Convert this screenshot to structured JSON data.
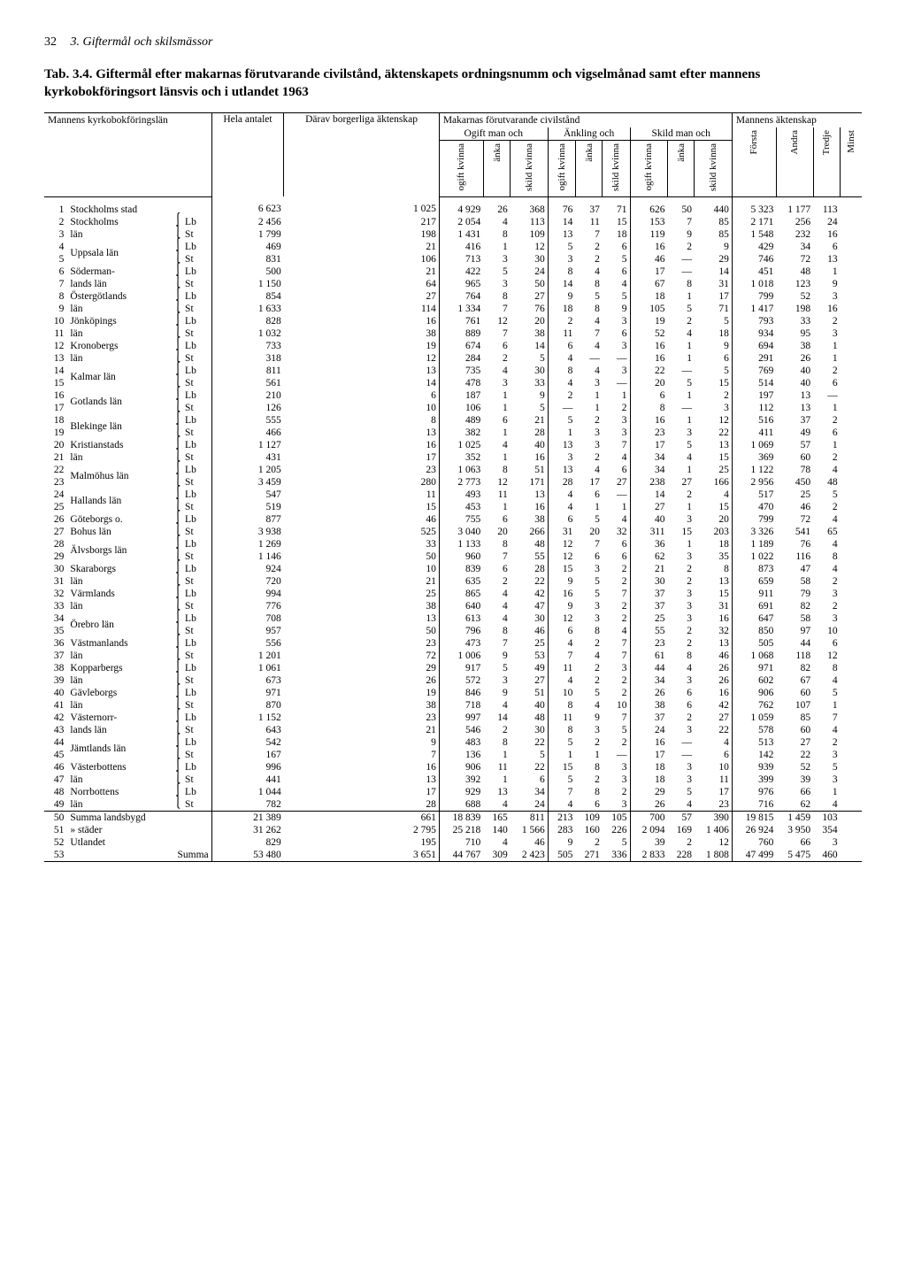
{
  "page": {
    "num": "32",
    "section": "3. Giftermål och skilsmässor"
  },
  "title_lead": "Tab. 3.4.",
  "title_rest": " Giftermål efter makarnas förutvarande civilstånd, äktenskapets ordningsnumm och vigselmånad samt efter mannens kyrkobokföringsort länsvis och i utlandet 1963",
  "headers": {
    "left": "Mannens kyrkobok­föringslän",
    "hela": "Hela an­talet",
    "darav": "Därav bor­ger­liga äkten­skap",
    "makarnas": "Makarnas förutvarande civilstånd",
    "mannens": "Mannens äktenskap",
    "ogift_man": "Ogift man och",
    "ankling": "Änkling och",
    "skild_man": "Skild man och",
    "sub": {
      "ogift_kv": "ogift kvinna",
      "anka": "änka",
      "skild_kv": "skild kvinna",
      "forsta": "Första",
      "andra": "Andra",
      "tredje": "Tredje",
      "minst": "Minst"
    }
  },
  "regions": [
    {
      "rows": [
        [
          "1",
          "Stockholms stad",
          "",
          "6 623",
          "1 025",
          "4 929",
          "26",
          "368",
          "76",
          "37",
          "71",
          "626",
          "50",
          "440",
          "5 323",
          "1 177",
          "113",
          ""
        ]
      ]
    },
    {
      "rows": [
        [
          "2",
          "Stockholms",
          "Lb",
          "2 456",
          "217",
          "2 054",
          "4",
          "113",
          "14",
          "11",
          "15",
          "153",
          "7",
          "85",
          "2 171",
          "256",
          "24",
          ""
        ],
        [
          "3",
          "län",
          "St",
          "1 799",
          "198",
          "1 431",
          "8",
          "109",
          "13",
          "7",
          "18",
          "119",
          "9",
          "85",
          "1 548",
          "232",
          "16",
          ""
        ]
      ]
    },
    {
      "rows": [
        [
          "4",
          "Uppsala län",
          "Lb",
          "469",
          "21",
          "416",
          "1",
          "12",
          "5",
          "2",
          "6",
          "16",
          "2",
          "9",
          "429",
          "34",
          "6",
          ""
        ],
        [
          "5",
          "",
          "St",
          "831",
          "106",
          "713",
          "3",
          "30",
          "3",
          "2",
          "5",
          "46",
          "—",
          "29",
          "746",
          "72",
          "13",
          ""
        ]
      ]
    },
    {
      "rows": [
        [
          "6",
          "Söderman-",
          "Lb",
          "500",
          "21",
          "422",
          "5",
          "24",
          "8",
          "4",
          "6",
          "17",
          "—",
          "14",
          "451",
          "48",
          "1",
          ""
        ],
        [
          "7",
          "lands län",
          "St",
          "1 150",
          "64",
          "965",
          "3",
          "50",
          "14",
          "8",
          "4",
          "67",
          "8",
          "31",
          "1 018",
          "123",
          "9",
          ""
        ]
      ]
    },
    {
      "rows": [
        [
          "8",
          "Östergötlands",
          "Lb",
          "854",
          "27",
          "764",
          "8",
          "27",
          "9",
          "5",
          "5",
          "18",
          "1",
          "17",
          "799",
          "52",
          "3",
          ""
        ],
        [
          "9",
          "län",
          "St",
          "1 633",
          "114",
          "1 334",
          "7",
          "76",
          "18",
          "8",
          "9",
          "105",
          "5",
          "71",
          "1 417",
          "198",
          "16",
          ""
        ]
      ]
    },
    {
      "rows": [
        [
          "10",
          "Jönköpings",
          "Lb",
          "828",
          "16",
          "761",
          "12",
          "20",
          "2",
          "4",
          "3",
          "19",
          "2",
          "5",
          "793",
          "33",
          "2",
          ""
        ],
        [
          "11",
          "län",
          "St",
          "1 032",
          "38",
          "889",
          "7",
          "38",
          "11",
          "7",
          "6",
          "52",
          "4",
          "18",
          "934",
          "95",
          "3",
          ""
        ]
      ]
    },
    {
      "rows": [
        [
          "12",
          "Kronobergs",
          "Lb",
          "733",
          "19",
          "674",
          "6",
          "14",
          "6",
          "4",
          "3",
          "16",
          "1",
          "9",
          "694",
          "38",
          "1",
          ""
        ],
        [
          "13",
          "län",
          "St",
          "318",
          "12",
          "284",
          "2",
          "5",
          "4",
          "—",
          "—",
          "16",
          "1",
          "6",
          "291",
          "26",
          "1",
          ""
        ]
      ]
    },
    {
      "rows": [
        [
          "14",
          "Kalmar län",
          "Lb",
          "811",
          "13",
          "735",
          "4",
          "30",
          "8",
          "4",
          "3",
          "22",
          "—",
          "5",
          "769",
          "40",
          "2",
          ""
        ],
        [
          "15",
          "",
          "St",
          "561",
          "14",
          "478",
          "3",
          "33",
          "4",
          "3",
          "—",
          "20",
          "5",
          "15",
          "514",
          "40",
          "6",
          ""
        ]
      ]
    },
    {
      "rows": [
        [
          "16",
          "Gotlands län",
          "Lb",
          "210",
          "6",
          "187",
          "1",
          "9",
          "2",
          "1",
          "1",
          "6",
          "1",
          "2",
          "197",
          "13",
          "—",
          ""
        ],
        [
          "17",
          "",
          "St",
          "126",
          "10",
          "106",
          "1",
          "5",
          "—",
          "1",
          "2",
          "8",
          "—",
          "3",
          "112",
          "13",
          "1",
          ""
        ]
      ]
    },
    {
      "rows": [
        [
          "18",
          "Blekinge län",
          "Lb",
          "555",
          "8",
          "489",
          "6",
          "21",
          "5",
          "2",
          "3",
          "16",
          "1",
          "12",
          "516",
          "37",
          "2",
          ""
        ],
        [
          "19",
          "",
          "St",
          "466",
          "13",
          "382",
          "1",
          "28",
          "1",
          "3",
          "3",
          "23",
          "3",
          "22",
          "411",
          "49",
          "6",
          ""
        ]
      ]
    },
    {
      "rows": [
        [
          "20",
          "Kristianstads",
          "Lb",
          "1 127",
          "16",
          "1 025",
          "4",
          "40",
          "13",
          "3",
          "7",
          "17",
          "5",
          "13",
          "1 069",
          "57",
          "1",
          ""
        ],
        [
          "21",
          "län",
          "St",
          "431",
          "17",
          "352",
          "1",
          "16",
          "3",
          "2",
          "4",
          "34",
          "4",
          "15",
          "369",
          "60",
          "2",
          ""
        ]
      ]
    },
    {
      "rows": [
        [
          "22",
          "Malmöhus län",
          "Lb",
          "1 205",
          "23",
          "1 063",
          "8",
          "51",
          "13",
          "4",
          "6",
          "34",
          "1",
          "25",
          "1 122",
          "78",
          "4",
          ""
        ],
        [
          "23",
          "",
          "St",
          "3 459",
          "280",
          "2 773",
          "12",
          "171",
          "28",
          "17",
          "27",
          "238",
          "27",
          "166",
          "2 956",
          "450",
          "48",
          ""
        ]
      ]
    },
    {
      "rows": [
        [
          "24",
          "Hallands län",
          "Lb",
          "547",
          "11",
          "493",
          "11",
          "13",
          "4",
          "6",
          "—",
          "14",
          "2",
          "4",
          "517",
          "25",
          "5",
          ""
        ],
        [
          "25",
          "",
          "St",
          "519",
          "15",
          "453",
          "1",
          "16",
          "4",
          "1",
          "1",
          "27",
          "1",
          "15",
          "470",
          "46",
          "2",
          ""
        ]
      ]
    },
    {
      "rows": [
        [
          "26",
          "Göteborgs o.",
          "Lb",
          "877",
          "46",
          "755",
          "6",
          "38",
          "6",
          "5",
          "4",
          "40",
          "3",
          "20",
          "799",
          "72",
          "4",
          ""
        ],
        [
          "27",
          "Bohus län",
          "St",
          "3 938",
          "525",
          "3 040",
          "20",
          "266",
          "31",
          "20",
          "32",
          "311",
          "15",
          "203",
          "3 326",
          "541",
          "65",
          ""
        ]
      ]
    },
    {
      "rows": [
        [
          "28",
          "Älvsborgs län",
          "Lb",
          "1 269",
          "33",
          "1 133",
          "8",
          "48",
          "12",
          "7",
          "6",
          "36",
          "1",
          "18",
          "1 189",
          "76",
          "4",
          ""
        ],
        [
          "29",
          "",
          "St",
          "1 146",
          "50",
          "960",
          "7",
          "55",
          "12",
          "6",
          "6",
          "62",
          "3",
          "35",
          "1 022",
          "116",
          "8",
          ""
        ]
      ]
    },
    {
      "rows": [
        [
          "30",
          "Skaraborgs",
          "Lb",
          "924",
          "10",
          "839",
          "6",
          "28",
          "15",
          "3",
          "2",
          "21",
          "2",
          "8",
          "873",
          "47",
          "4",
          ""
        ],
        [
          "31",
          "län",
          "St",
          "720",
          "21",
          "635",
          "2",
          "22",
          "9",
          "5",
          "2",
          "30",
          "2",
          "13",
          "659",
          "58",
          "2",
          ""
        ]
      ]
    },
    {
      "rows": [
        [
          "32",
          "Värmlands",
          "Lb",
          "994",
          "25",
          "865",
          "4",
          "42",
          "16",
          "5",
          "7",
          "37",
          "3",
          "15",
          "911",
          "79",
          "3",
          ""
        ],
        [
          "33",
          "län",
          "St",
          "776",
          "38",
          "640",
          "4",
          "47",
          "9",
          "3",
          "2",
          "37",
          "3",
          "31",
          "691",
          "82",
          "2",
          ""
        ]
      ]
    },
    {
      "rows": [
        [
          "34",
          "Örebro län",
          "Lb",
          "708",
          "13",
          "613",
          "4",
          "30",
          "12",
          "3",
          "2",
          "25",
          "3",
          "16",
          "647",
          "58",
          "3",
          ""
        ],
        [
          "35",
          "",
          "St",
          "957",
          "50",
          "796",
          "8",
          "46",
          "6",
          "8",
          "4",
          "55",
          "2",
          "32",
          "850",
          "97",
          "10",
          ""
        ]
      ]
    },
    {
      "rows": [
        [
          "36",
          "Västmanlands",
          "Lb",
          "556",
          "23",
          "473",
          "7",
          "25",
          "4",
          "2",
          "7",
          "23",
          "2",
          "13",
          "505",
          "44",
          "6",
          ""
        ],
        [
          "37",
          "län",
          "St",
          "1 201",
          "72",
          "1 006",
          "9",
          "53",
          "7",
          "4",
          "7",
          "61",
          "8",
          "46",
          "1 068",
          "118",
          "12",
          ""
        ]
      ]
    },
    {
      "rows": [
        [
          "38",
          "Kopparbergs",
          "Lb",
          "1 061",
          "29",
          "917",
          "5",
          "49",
          "11",
          "2",
          "3",
          "44",
          "4",
          "26",
          "971",
          "82",
          "8",
          ""
        ],
        [
          "39",
          "län",
          "St",
          "673",
          "26",
          "572",
          "3",
          "27",
          "4",
          "2",
          "2",
          "34",
          "3",
          "26",
          "602",
          "67",
          "4",
          ""
        ]
      ]
    },
    {
      "rows": [
        [
          "40",
          "Gävleborgs",
          "Lb",
          "971",
          "19",
          "846",
          "9",
          "51",
          "10",
          "5",
          "2",
          "26",
          "6",
          "16",
          "906",
          "60",
          "5",
          ""
        ],
        [
          "41",
          "län",
          "St",
          "870",
          "38",
          "718",
          "4",
          "40",
          "8",
          "4",
          "10",
          "38",
          "6",
          "42",
          "762",
          "107",
          "1",
          ""
        ]
      ]
    },
    {
      "rows": [
        [
          "42",
          "Västernorr-",
          "Lb",
          "1 152",
          "23",
          "997",
          "14",
          "48",
          "11",
          "9",
          "7",
          "37",
          "2",
          "27",
          "1 059",
          "85",
          "7",
          ""
        ],
        [
          "43",
          "lands län",
          "St",
          "643",
          "21",
          "546",
          "2",
          "30",
          "8",
          "3",
          "5",
          "24",
          "3",
          "22",
          "578",
          "60",
          "4",
          ""
        ]
      ]
    },
    {
      "rows": [
        [
          "44",
          "Jämtlands län",
          "Lb",
          "542",
          "9",
          "483",
          "8",
          "22",
          "5",
          "2",
          "2",
          "16",
          "—",
          "4",
          "513",
          "27",
          "2",
          ""
        ],
        [
          "45",
          "",
          "St",
          "167",
          "7",
          "136",
          "1",
          "5",
          "1",
          "1",
          "—",
          "17",
          "—",
          "6",
          "142",
          "22",
          "3",
          ""
        ]
      ]
    },
    {
      "rows": [
        [
          "46",
          "Västerbottens",
          "Lb",
          "996",
          "16",
          "906",
          "11",
          "22",
          "15",
          "8",
          "3",
          "18",
          "3",
          "10",
          "939",
          "52",
          "5",
          ""
        ],
        [
          "47",
          "län",
          "St",
          "441",
          "13",
          "392",
          "1",
          "6",
          "5",
          "2",
          "3",
          "18",
          "3",
          "11",
          "399",
          "39",
          "3",
          ""
        ]
      ]
    },
    {
      "rows": [
        [
          "48",
          "Norrbottens",
          "Lb",
          "1 044",
          "17",
          "929",
          "13",
          "34",
          "7",
          "8",
          "2",
          "29",
          "5",
          "17",
          "976",
          "66",
          "1",
          ""
        ],
        [
          "49",
          "län",
          "St",
          "782",
          "28",
          "688",
          "4",
          "24",
          "4",
          "6",
          "3",
          "26",
          "4",
          "23",
          "716",
          "62",
          "4",
          ""
        ]
      ]
    }
  ],
  "summary": [
    [
      "50",
      "Summa landsbygd",
      "",
      "21 389",
      "661",
      "18 839",
      "165",
      "811",
      "213",
      "109",
      "105",
      "700",
      "57",
      "390",
      "19 815",
      "1 459",
      "103",
      ""
    ],
    [
      "51",
      "»       städer",
      "",
      "31 262",
      "2 795",
      "25 218",
      "140",
      "1 566",
      "283",
      "160",
      "226",
      "2 094",
      "169",
      "1 406",
      "26 924",
      "3 950",
      "354",
      ""
    ],
    [
      "52",
      "Utlandet",
      "",
      "829",
      "195",
      "710",
      "4",
      "46",
      "9",
      "2",
      "5",
      "39",
      "2",
      "12",
      "760",
      "66",
      "3",
      ""
    ],
    [
      "53",
      "Summa",
      "",
      "53 480",
      "3 651",
      "44 767",
      "309",
      "2 423",
      "505",
      "271",
      "336",
      "2 833",
      "228",
      "1 808",
      "47 499",
      "5 475",
      "460",
      ""
    ]
  ]
}
